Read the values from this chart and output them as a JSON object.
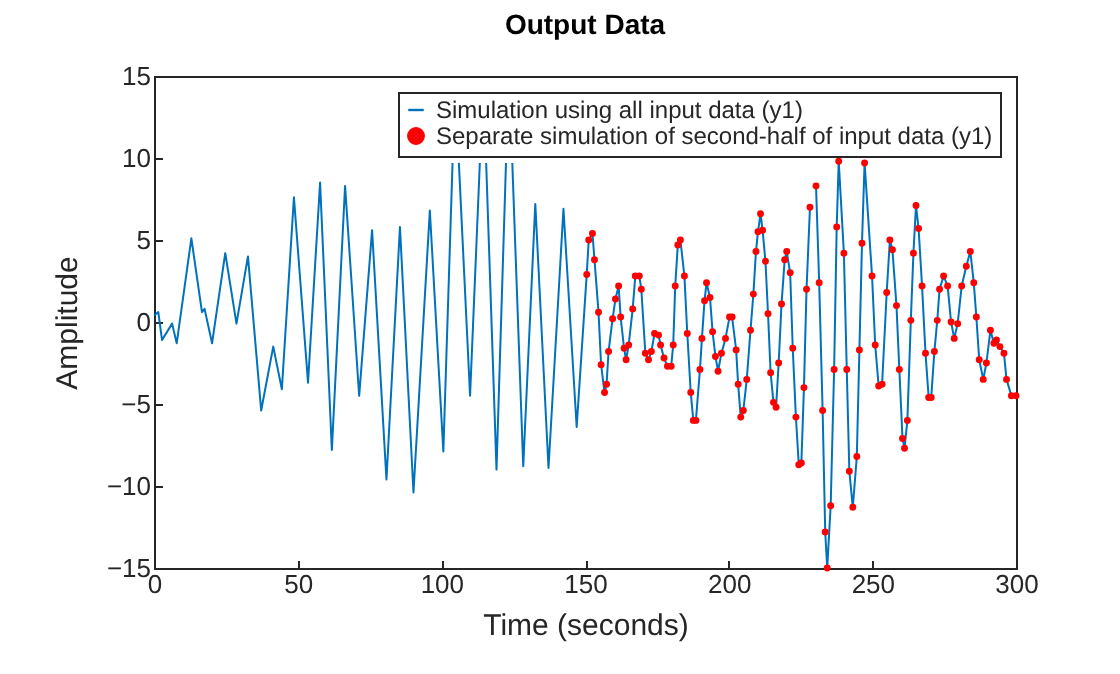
{
  "chart_data": {
    "type": "line",
    "title": "Output Data",
    "xlabel": "Time (seconds)",
    "ylabel": "Amplitude",
    "xlim": [
      0,
      300
    ],
    "ylim": [
      -15,
      15
    ],
    "xticks": [
      0,
      50,
      100,
      150,
      200,
      250,
      300
    ],
    "yticks": [
      -15,
      -10,
      -5,
      0,
      5,
      10,
      15
    ],
    "grid": false,
    "legend": "top right",
    "line_style": "solid",
    "series": [
      {
        "name": "Simulation using all input data (y1)",
        "color": "#0072bd",
        "type": "line",
        "marker": "none",
        "x": [
          0,
          1.5,
          2.8,
          6.3,
          7.9,
          13,
          16.7,
          17.6,
          20.2,
          24.8,
          28.7,
          32.7,
          37.3,
          41.5,
          44.5,
          48.7,
          53.6,
          57.8,
          61.9,
          66.5,
          71.4,
          75.9,
          80.9,
          85.6,
          90.3,
          96,
          100.7,
          103.9,
          105,
          106.1,
          110,
          113.4,
          114.5,
          115.6,
          119.2,
          122.5,
          123.6,
          124.7,
          128.5,
          132.7,
          137.3,
          142.5,
          147.1,
          150.6,
          151.3,
          152.6,
          153.3,
          154.7,
          155.6,
          156.8,
          157.5,
          158.2,
          159.6,
          160.6,
          161.7,
          162.4,
          163.6,
          164.3,
          165.2,
          166.6,
          167.5,
          168.9,
          169.6,
          171,
          172.1,
          173.1,
          174.2,
          175.6,
          176.3,
          177.5,
          178.7,
          180,
          180.7,
          181.4,
          182.3,
          183.2,
          184.6,
          185.6,
          186.8,
          187.7,
          188.6,
          190,
          190.7,
          191.6,
          192.3,
          193.5,
          194.4,
          195.4,
          196.3,
          197.5,
          198.9,
          200.3,
          201.2,
          202.6,
          203.3,
          204.2,
          205.1,
          206.3,
          207.6,
          208.6,
          209.5,
          210.2,
          211.1,
          211.8,
          212.8,
          213.7,
          214.6,
          215.6,
          216.5,
          217.4,
          218.4,
          219.5,
          220.2,
          221.4,
          222.3,
          223.4,
          224.4,
          225.3,
          226.2,
          227.1,
          228.3,
          229.5,
          230.4,
          231.5,
          232.7,
          233.6,
          234.3,
          235.5,
          236.7,
          237.6,
          238.3,
          240.1,
          241.1,
          242,
          243.2,
          244.6,
          245.5,
          246.4,
          247.3,
          249.9,
          251,
          252.2,
          253.4,
          255,
          256.1,
          257,
          258.4,
          259.4,
          260.5,
          261.2,
          262.2,
          263.4,
          264.3,
          265.2,
          266.1,
          267.3,
          268.5,
          269.6,
          270.5,
          271.6,
          272.6,
          273.4,
          274.8,
          276.2,
          277.4,
          278.5,
          279.7,
          281.1,
          282.7,
          284.1,
          285.3,
          286.2,
          287.2,
          288.6,
          289.7,
          291.1,
          292.3,
          293.2,
          294.4,
          295.8,
          296.7,
          298.4,
          300
        ],
        "values": [
          0.4,
          0.6,
          -1.1,
          -0.1,
          -1.3,
          5.1,
          0.6,
          0.8,
          -1.3,
          4.2,
          -0.1,
          4,
          -5.4,
          -1.5,
          -4.1,
          7.6,
          -3.7,
          8.5,
          -7.8,
          8.3,
          -4.5,
          5.6,
          -9.6,
          5.8,
          -10.4,
          6.8,
          -7.9,
          9.7,
          null,
          9.7,
          -4.5,
          9.7,
          null,
          9.7,
          -9,
          9.7,
          null,
          9.7,
          -8.8,
          7.2,
          -8.9,
          6.9,
          -6.4,
          2.9,
          5,
          5.4,
          3.8,
          0.6,
          -2.6,
          -4.3,
          -3.8,
          -1.8,
          0.2,
          1.4,
          2.2,
          0.3,
          -1.6,
          -2.3,
          -1.4,
          0.8,
          2.8,
          2.8,
          2,
          -1.9,
          -2.3,
          -1.8,
          -0.7,
          -0.8,
          -1.4,
          -2.2,
          -2.7,
          -2.7,
          -1.4,
          2.2,
          4.7,
          5,
          2.8,
          -0.7,
          -4.3,
          -6,
          -6,
          -2.9,
          -1,
          1.3,
          2.4,
          1.5,
          -0.6,
          -2.1,
          -3,
          -1.9,
          -1,
          0.3,
          0.3,
          -1.7,
          -3.8,
          -5.8,
          -5.4,
          -3.5,
          -0.5,
          1.7,
          4.3,
          5.5,
          6.6,
          5.6,
          3.7,
          0.5,
          -3.1,
          -4.9,
          -5.2,
          -2.5,
          1.1,
          3.8,
          4.3,
          3,
          -1.6,
          -5.8,
          -8.7,
          -8.6,
          -4,
          2,
          7,
          null,
          8.3,
          2.4,
          -5.4,
          -12.8,
          -15,
          -11.2,
          -2.9,
          5.8,
          9.8,
          4.2,
          -2.9,
          -9.1,
          -11.3,
          -8.2,
          -1.7,
          4.8,
          9.7,
          2.8,
          -1.4,
          -3.9,
          -3.8,
          1.8,
          5,
          4.4,
          1,
          -2.9,
          -7.1,
          -7.7,
          -6,
          0.1,
          4.2,
          7.1,
          5.7,
          2.2,
          -1.9,
          -4.6,
          -4.6,
          -1.8,
          0.1,
          2,
          2.8,
          2.2,
          0,
          -1,
          -0.1,
          2.2,
          3.4,
          4.3,
          2.4,
          0.3,
          -2.3,
          -3.5,
          -2.5,
          -0.5,
          -1.3,
          -1.1,
          -1.5,
          -1.9,
          -3.5,
          -4.5,
          -4.5
        ]
      },
      {
        "name": "Separate simulation of second-half of input data (y1)",
        "color": "#ff0000",
        "type": "scatter",
        "marker": "circle",
        "x": [
          150.6,
          151.3,
          152.6,
          153.3,
          154.7,
          155.6,
          156.8,
          157.5,
          158.2,
          159.6,
          160.6,
          161.7,
          162.4,
          163.6,
          164.3,
          165.2,
          166.6,
          167.5,
          168.9,
          169.6,
          171,
          172.1,
          173.1,
          174.2,
          175.6,
          176.3,
          177.5,
          178.7,
          180,
          180.7,
          181.4,
          182.3,
          183.2,
          184.6,
          185.6,
          186.8,
          187.7,
          188.6,
          190,
          190.7,
          191.6,
          192.3,
          193.5,
          194.4,
          195.4,
          196.3,
          197.5,
          198.9,
          200.3,
          201.2,
          202.6,
          203.3,
          204.2,
          205.1,
          206.3,
          207.6,
          208.6,
          209.5,
          210.2,
          211.1,
          211.8,
          212.8,
          213.7,
          214.6,
          215.6,
          216.5,
          217.4,
          218.4,
          219.5,
          220.2,
          221.4,
          222.3,
          223.4,
          224.4,
          225.3,
          226.2,
          227.1,
          228.3,
          230.4,
          231.5,
          232.7,
          233.6,
          234.3,
          235.5,
          236.7,
          237.6,
          238.3,
          240.1,
          241.1,
          242,
          243.2,
          244.6,
          245.5,
          246.4,
          247.3,
          249.9,
          251,
          252.2,
          253.4,
          255,
          256.1,
          257,
          258.4,
          259.4,
          260.5,
          261.2,
          262.2,
          263.4,
          264.3,
          265.2,
          266.1,
          267.3,
          268.5,
          269.6,
          270.5,
          271.6,
          272.6,
          273.4,
          274.8,
          276.2,
          277.4,
          278.5,
          279.7,
          281.1,
          282.7,
          284.1,
          285.3,
          286.2,
          287.2,
          288.6,
          289.7,
          291.1,
          292.3,
          293.2,
          294.4,
          295.8,
          296.7,
          298.4,
          300
        ],
        "values": [
          2.9,
          5,
          5.4,
          3.8,
          0.6,
          -2.6,
          -4.3,
          -3.8,
          -1.8,
          0.2,
          1.4,
          2.2,
          0.3,
          -1.6,
          -2.3,
          -1.4,
          0.8,
          2.8,
          2.8,
          2,
          -1.9,
          -2.3,
          -1.8,
          -0.7,
          -0.8,
          -1.4,
          -2.2,
          -2.7,
          -2.7,
          -1.4,
          2.2,
          4.7,
          5,
          2.8,
          -0.7,
          -4.3,
          -6,
          -6,
          -2.9,
          -1,
          1.3,
          2.4,
          1.5,
          -0.6,
          -2.1,
          -3,
          -1.9,
          -1,
          0.3,
          0.3,
          -1.7,
          -3.8,
          -5.8,
          -5.4,
          -3.5,
          -0.5,
          1.7,
          4.3,
          5.5,
          6.6,
          5.6,
          3.7,
          0.5,
          -3.1,
          -4.9,
          -5.2,
          -2.5,
          1.1,
          3.8,
          4.3,
          3,
          -1.6,
          -5.8,
          -8.7,
          -8.6,
          -4,
          2,
          7,
          8.3,
          2.4,
          -5.4,
          -12.8,
          -15,
          -11.2,
          -2.9,
          5.8,
          9.8,
          4.2,
          -2.9,
          -9.1,
          -11.3,
          -8.2,
          -1.7,
          4.8,
          9.7,
          2.8,
          -1.4,
          -3.9,
          -3.8,
          1.8,
          5,
          4.4,
          1,
          -2.9,
          -7.1,
          -7.7,
          -6,
          0.1,
          4.2,
          7.1,
          5.7,
          2.2,
          -1.9,
          -4.6,
          -4.6,
          -1.8,
          0.1,
          2,
          2.8,
          2.2,
          0,
          -1,
          -0.1,
          2.2,
          3.4,
          4.3,
          2.4,
          0.3,
          -2.3,
          -3.5,
          -2.5,
          -0.5,
          -1.3,
          -1.1,
          -1.5,
          -1.9,
          -3.5,
          -4.5,
          -4.5
        ]
      }
    ]
  }
}
